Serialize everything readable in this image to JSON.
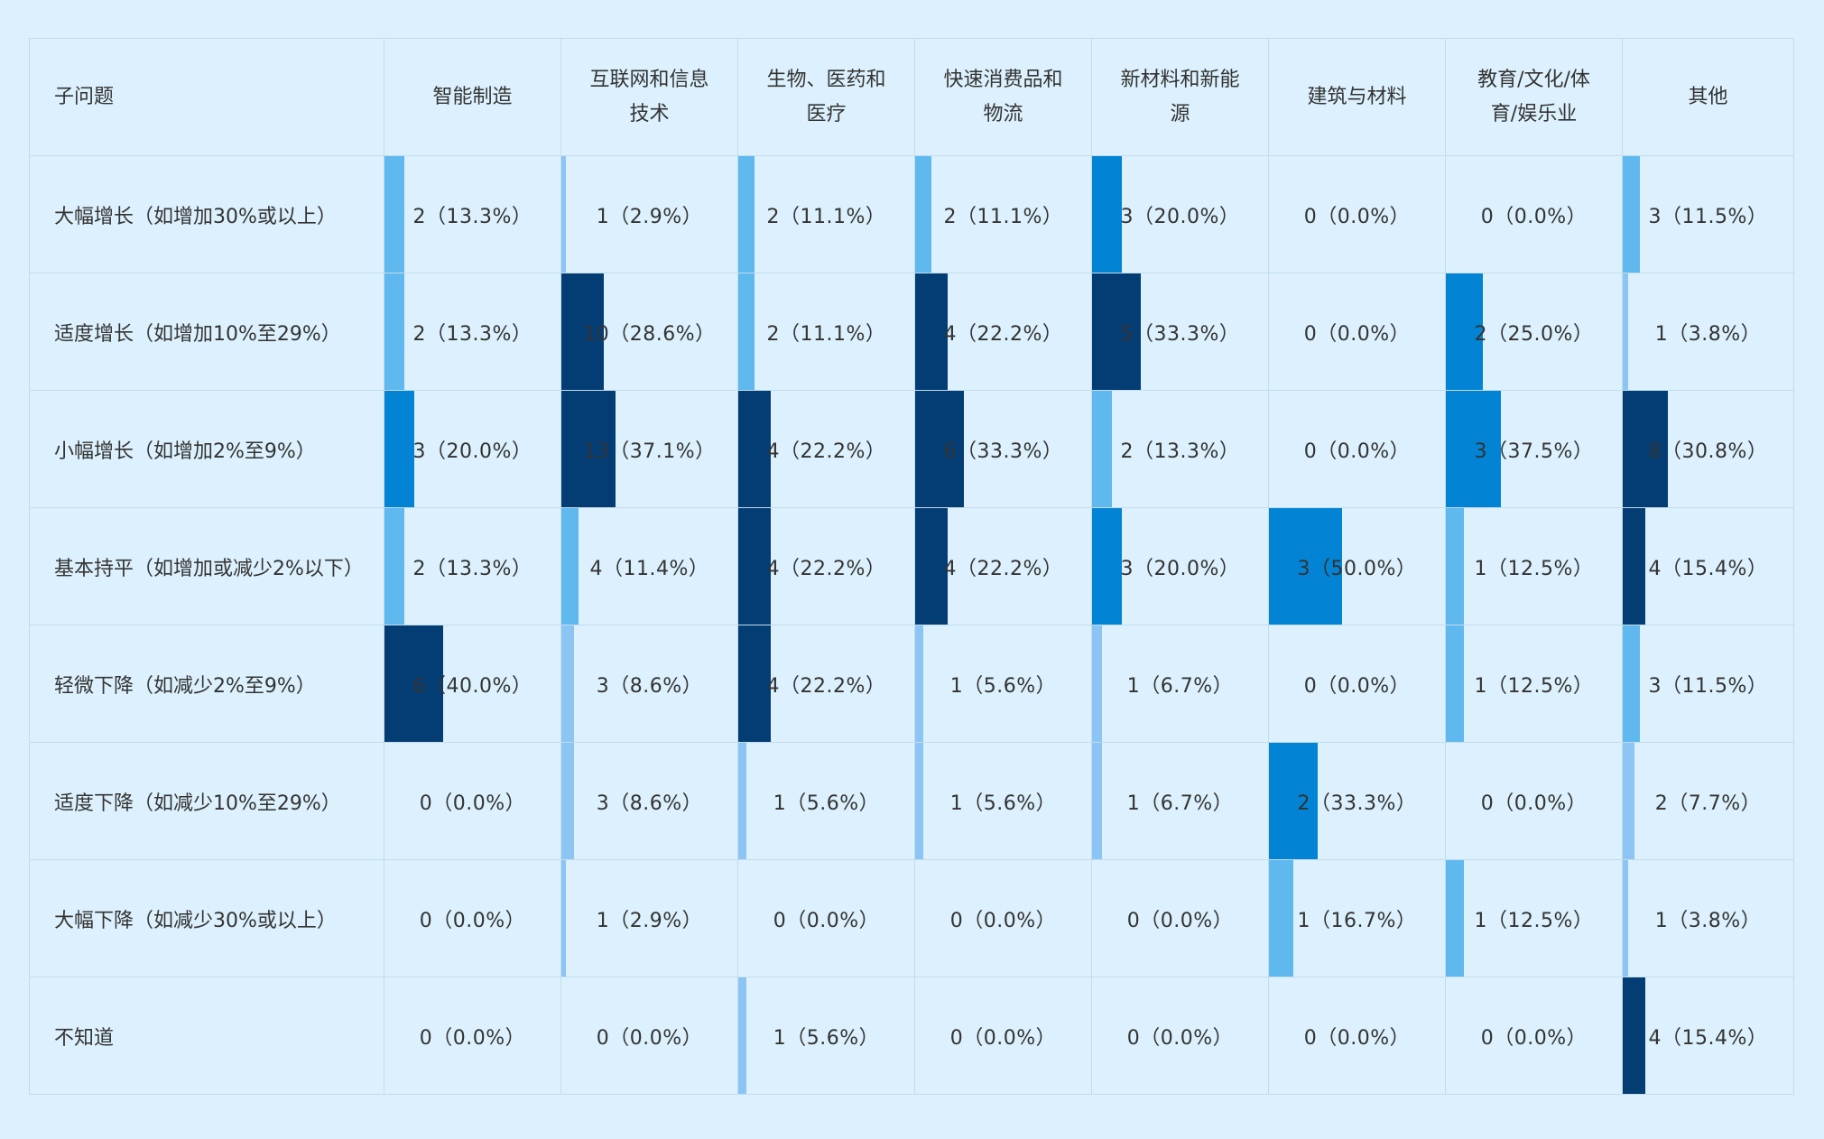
{
  "chart_data": {
    "type": "table",
    "header_first": "子问题",
    "columns": [
      "智能制造",
      "互联网和信息技术",
      "生物、医药和医疗",
      "快速消费品和物流",
      "新材料和新能源",
      "建筑与材料",
      "教育/文化/体育/娱乐业",
      "其他"
    ],
    "rows": [
      {
        "label": "大幅增长（如增加30%或以上）",
        "counts": [
          2,
          1,
          2,
          2,
          3,
          0,
          0,
          3
        ],
        "cells": [
          "2（13.3%）",
          "1（2.9%）",
          "2（11.1%）",
          "2（11.1%）",
          "3（20.0%）",
          "0（0.0%）",
          "0（0.0%）",
          "3（11.5%）"
        ],
        "percents": [
          13.3,
          2.9,
          11.1,
          11.1,
          20.0,
          0.0,
          0.0,
          11.5
        ]
      },
      {
        "label": "适度增长（如增加10%至29%）",
        "counts": [
          2,
          10,
          2,
          4,
          5,
          0,
          2,
          1
        ],
        "cells": [
          "2（13.3%）",
          "10（28.6%）",
          "2（11.1%）",
          "4（22.2%）",
          "5（33.3%）",
          "0（0.0%）",
          "2（25.0%）",
          "1（3.8%）"
        ],
        "percents": [
          13.3,
          28.6,
          11.1,
          22.2,
          33.3,
          0.0,
          25.0,
          3.8
        ]
      },
      {
        "label": "小幅增长（如增加2%至9%）",
        "counts": [
          3,
          13,
          4,
          6,
          2,
          0,
          3,
          8
        ],
        "cells": [
          "3（20.0%）",
          "13（37.1%）",
          "4（22.2%）",
          "6（33.3%）",
          "2（13.3%）",
          "0（0.0%）",
          "3（37.5%）",
          "8（30.8%）"
        ],
        "percents": [
          20.0,
          37.1,
          22.2,
          33.3,
          13.3,
          0.0,
          37.5,
          30.8
        ]
      },
      {
        "label": "基本持平（如增加或减少2%以下）",
        "counts": [
          2,
          4,
          4,
          4,
          3,
          3,
          1,
          4
        ],
        "cells": [
          "2（13.3%）",
          "4（11.4%）",
          "4（22.2%）",
          "4（22.2%）",
          "3（20.0%）",
          "3（50.0%）",
          "1（12.5%）",
          "4（15.4%）"
        ],
        "percents": [
          13.3,
          11.4,
          22.2,
          22.2,
          20.0,
          50.0,
          12.5,
          15.4
        ]
      },
      {
        "label": "轻微下降（如减少2%至9%）",
        "counts": [
          6,
          3,
          4,
          1,
          1,
          0,
          1,
          3
        ],
        "cells": [
          "6（40.0%）",
          "3（8.6%）",
          "4（22.2%）",
          "1（5.6%）",
          "1（6.7%）",
          "0（0.0%）",
          "1（12.5%）",
          "3（11.5%）"
        ],
        "percents": [
          40.0,
          8.6,
          22.2,
          5.6,
          6.7,
          0.0,
          12.5,
          11.5
        ]
      },
      {
        "label": "适度下降（如减少10%至29%）",
        "counts": [
          0,
          3,
          1,
          1,
          1,
          2,
          0,
          2
        ],
        "cells": [
          "0（0.0%）",
          "3（8.6%）",
          "1（5.6%）",
          "1（5.6%）",
          "1（6.7%）",
          "2（33.3%）",
          "0（0.0%）",
          "2（7.7%）"
        ],
        "percents": [
          0.0,
          8.6,
          5.6,
          5.6,
          6.7,
          33.3,
          0.0,
          7.7
        ]
      },
      {
        "label": "大幅下降（如减少30%或以上）",
        "counts": [
          0,
          1,
          0,
          0,
          0,
          1,
          1,
          1
        ],
        "cells": [
          "0（0.0%）",
          "1（2.9%）",
          "0（0.0%）",
          "0（0.0%）",
          "0（0.0%）",
          "1（16.7%）",
          "1（12.5%）",
          "1（3.8%）"
        ],
        "percents": [
          0.0,
          2.9,
          0.0,
          0.0,
          0.0,
          16.7,
          12.5,
          3.8
        ]
      },
      {
        "label": "不知道",
        "counts": [
          0,
          0,
          1,
          0,
          0,
          0,
          0,
          4
        ],
        "cells": [
          "0（0.0%）",
          "0（0.0%）",
          "1（5.6%）",
          "0（0.0%）",
          "0（0.0%）",
          "0（0.0%）",
          "0（0.0%）",
          "4（15.4%）"
        ],
        "percents": [
          0.0,
          0.0,
          5.6,
          0.0,
          0.0,
          0.0,
          0.0,
          15.4
        ]
      }
    ],
    "colors": {
      "background": "#dcf1fd",
      "grid": "#c3dceb",
      "text": "#333333",
      "text_on_dark": "#ffffff",
      "bar_level_1": "#8cc5f4",
      "bar_level_2": "#5fb8ee",
      "bar_level_3": "#0283d4",
      "bar_level_4": "#043d74"
    }
  }
}
